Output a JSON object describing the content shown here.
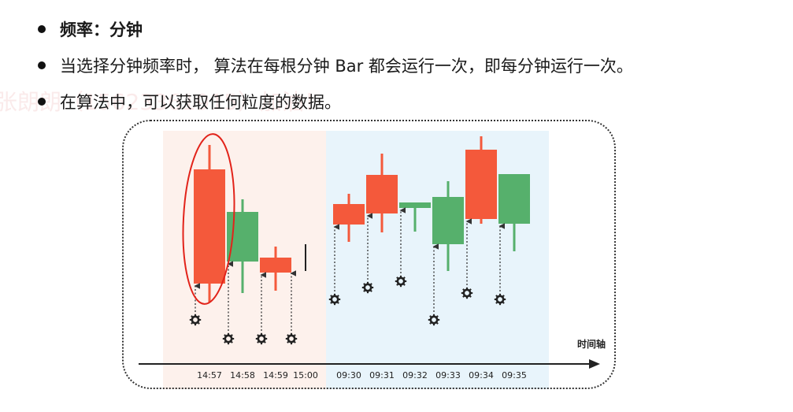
{
  "bullets": [
    {
      "text": "频率：分钟",
      "bold": true
    },
    {
      "text": "当选择分钟频率时， 算法在每根分钟 Bar 都会运行一次，即每分钟运行一次。",
      "bold": false
    },
    {
      "text": "在算法中，可以获取任何粒度的数据。",
      "bold": false
    }
  ],
  "watermark": "张朗朗（15623361915）加油！",
  "colors": {
    "up_red": "#f4593b",
    "down_green": "#56b06c",
    "left_band": "#fdf1ec",
    "right_band": "#e8f4fb",
    "ellipse": "#e2231a"
  },
  "chart_data": {
    "type": "candlestick",
    "axis_label": "时间轴",
    "groups": [
      {
        "name": "left",
        "candles": [
          {
            "time": "14:57",
            "color": "red",
            "open": 14,
            "close": 159,
            "high": 190,
            "low": -10
          },
          {
            "time": "14:58",
            "color": "green",
            "open": 105,
            "close": 42,
            "high": 121,
            "low": 2
          },
          {
            "time": "14:59",
            "color": "red",
            "open": 28,
            "close": 47,
            "high": 61,
            "low": 5
          },
          {
            "time": "15:00",
            "color": "none",
            "open": null,
            "close": null,
            "high": 64,
            "low": 30
          }
        ]
      },
      {
        "name": "right",
        "candles": [
          {
            "time": "09:30",
            "color": "red",
            "open": 89,
            "close": 115,
            "high": 128,
            "low": 67
          },
          {
            "time": "09:31",
            "color": "red",
            "open": 103,
            "close": 152,
            "high": 179,
            "low": 79
          },
          {
            "time": "09:32",
            "color": "green",
            "open": 117,
            "close": 110,
            "high": 117,
            "low": 80
          },
          {
            "time": "09:33",
            "color": "green",
            "open": 124,
            "close": 64,
            "high": 144,
            "low": 30
          },
          {
            "time": "09:34",
            "color": "red",
            "open": 96,
            "close": 184,
            "high": 201,
            "low": 90
          },
          {
            "time": "09:35",
            "color": "green",
            "open": 153,
            "close": 90,
            "high": 153,
            "low": 55
          }
        ]
      }
    ],
    "highlight": "14:57"
  }
}
